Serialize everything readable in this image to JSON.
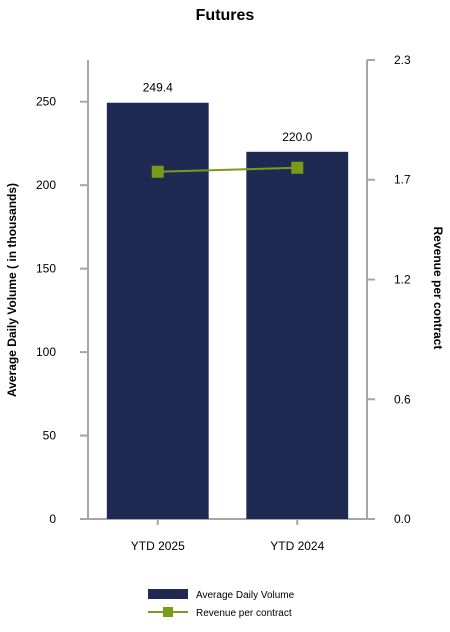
{
  "chart_data": {
    "type": "bar",
    "title": "Futures",
    "categories": [
      "YTD 2025",
      "YTD 2024"
    ],
    "series": [
      {
        "name": "Average Daily Volume",
        "type": "bar",
        "axis": "left",
        "color": "#1f2a52",
        "values": [
          249.4,
          220.0
        ],
        "data_labels": [
          "249.4",
          "220.0"
        ]
      },
      {
        "name": "Revenue per contract",
        "type": "line",
        "axis": "right",
        "color": "#7a9a1a",
        "marker": "square",
        "values": [
          1.74,
          1.76
        ]
      }
    ],
    "ylabel": "Average Daily Volume ( in thousands)",
    "ylim": [
      0,
      275
    ],
    "yticks": [
      "0",
      "50",
      "100",
      "150",
      "200",
      "250"
    ],
    "y2label": "Revenue per contract",
    "y2lim": [
      0,
      2.3
    ],
    "y2ticks": [
      "0.0",
      "0.6",
      "1.2",
      "1.7",
      "2.3"
    ],
    "grid": false,
    "legend_position": "bottom"
  }
}
